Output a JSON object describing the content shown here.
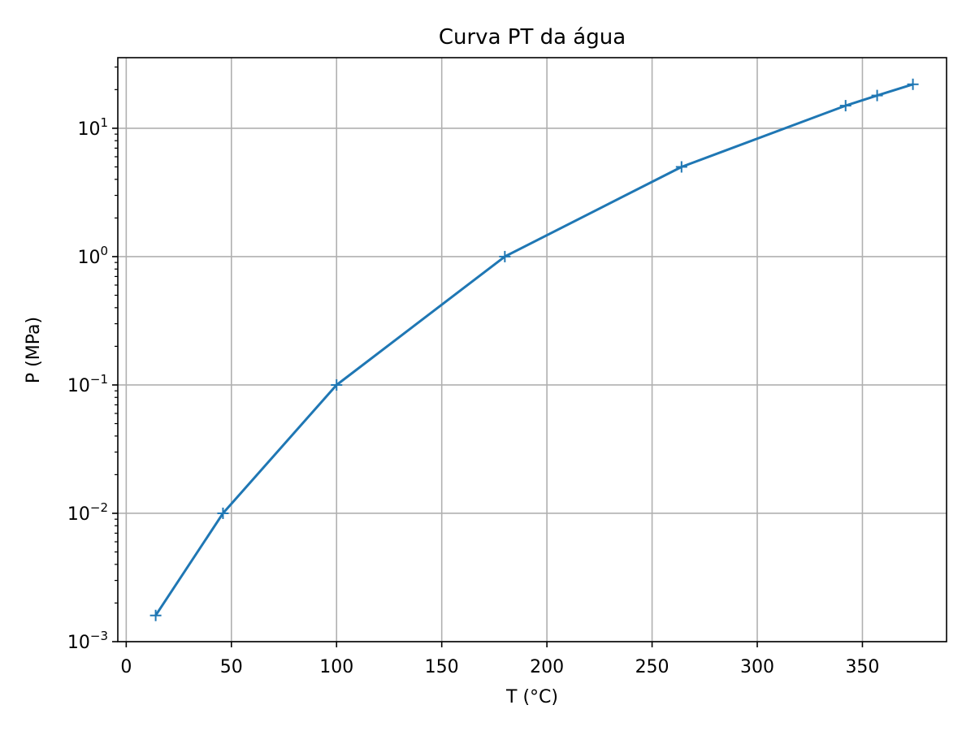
{
  "chart_data": {
    "type": "line",
    "title": "Curva PT da água",
    "xlabel": "T (°C)",
    "ylabel": "P (MPa)",
    "xlim": [
      -4,
      390
    ],
    "ylim_log10": [
      -3,
      1.55
    ],
    "y_scale": "log",
    "grid": true,
    "marker": "+",
    "color": "#1f77b4",
    "x_ticks": [
      0,
      50,
      100,
      150,
      200,
      250,
      300,
      350
    ],
    "x_tick_labels": [
      "0",
      "50",
      "100",
      "150",
      "200",
      "250",
      "300",
      "350"
    ],
    "y_ticks": [
      0.001,
      0.01,
      0.1,
      1,
      10
    ],
    "y_tick_labels": [
      {
        "base": "10",
        "exp": "−3"
      },
      {
        "base": "10",
        "exp": "−2"
      },
      {
        "base": "10",
        "exp": "−1"
      },
      {
        "base": "10",
        "exp": "0"
      },
      {
        "base": "10",
        "exp": "1"
      }
    ],
    "series": [
      {
        "x": [
          14,
          46,
          100,
          180,
          264,
          342,
          357,
          374
        ],
        "y": [
          0.0016,
          0.01,
          0.1,
          1,
          5,
          15,
          18,
          22
        ]
      }
    ]
  }
}
